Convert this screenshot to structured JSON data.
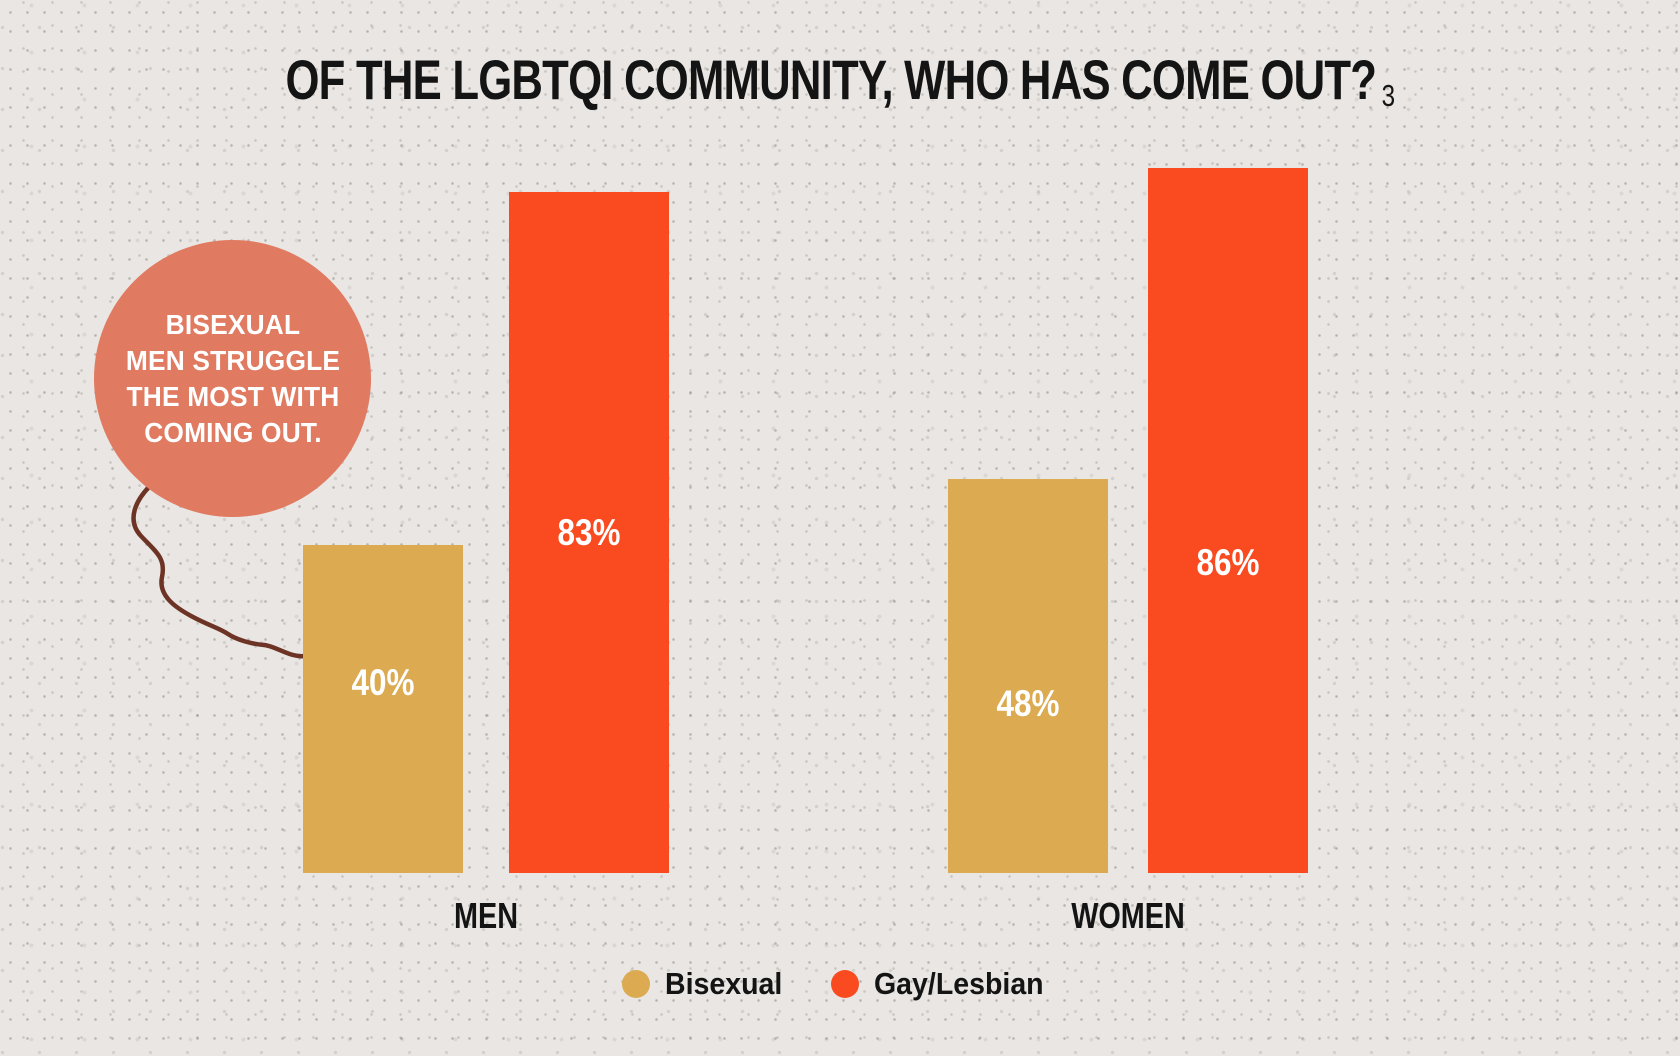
{
  "page": {
    "bg_color": "#e9e6e3",
    "text_color": "#141414"
  },
  "title": {
    "text": "OF THE LGBTQI COMMUNITY, WHO HAS COME OUT?",
    "footnote_marker": "3"
  },
  "callout": {
    "lines": [
      "BISEXUAL",
      "MEN STRUGGLE",
      "THE MOST WITH",
      "COMING OUT."
    ],
    "bubble_color": "#e07a61",
    "text_color": "#ffffff",
    "connector_color": "#6d3426"
  },
  "chart_data": {
    "type": "bar",
    "title": "OF THE LGBTQI COMMUNITY, WHO HAS COME OUT?",
    "categories": [
      "MEN",
      "WOMEN"
    ],
    "series": [
      {
        "name": "Bisexual",
        "color": "#dbaa51",
        "values": [
          40,
          48
        ],
        "value_labels": [
          "40%",
          "48%"
        ]
      },
      {
        "name": "Gay/Lesbian",
        "color": "#f94a20",
        "values": [
          83,
          86
        ],
        "value_labels": [
          "83%",
          "86%"
        ]
      }
    ],
    "ylim": [
      0,
      100
    ],
    "grid": false,
    "legend_position": "bottom",
    "annotation": "BISEXUAL MEN STRUGGLE THE MOST WITH COMING OUT."
  },
  "legend": {
    "items": [
      {
        "label": "Bisexual",
        "color": "#dbaa51"
      },
      {
        "label": "Gay/Lesbian",
        "color": "#f94a20"
      }
    ]
  }
}
